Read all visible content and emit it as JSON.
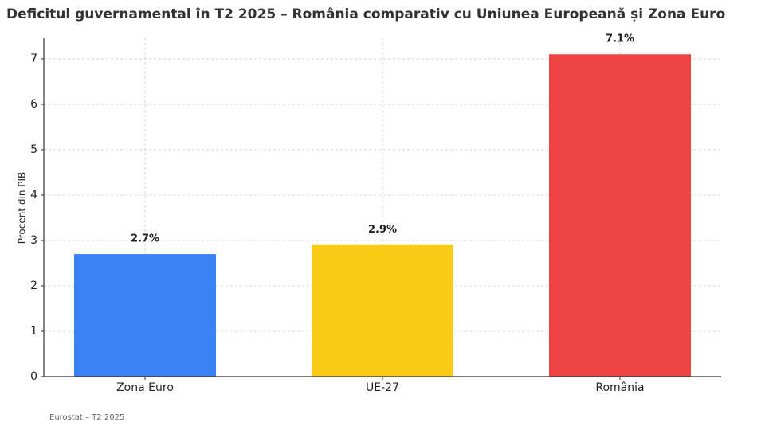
{
  "chart_data": {
    "type": "bar",
    "title": "Deficitul guvernamental în T2 2025 – România comparativ cu Uniunea Europeană și Zona Euro",
    "ylabel": "Procent din PIB",
    "note": "Eurostat – T2 2025",
    "categories": [
      "Zona Euro",
      "UE-27",
      "România"
    ],
    "values": [
      2.7,
      2.9,
      7.1
    ],
    "value_labels": [
      "2.7%",
      "2.9%",
      "7.1%"
    ],
    "colors": [
      "#3b82f6",
      "#facc15",
      "#ef4444"
    ],
    "ylim": [
      0,
      7.455
    ],
    "yticks": [
      0,
      1,
      2,
      3,
      4,
      5,
      6,
      7
    ],
    "grid": true
  }
}
